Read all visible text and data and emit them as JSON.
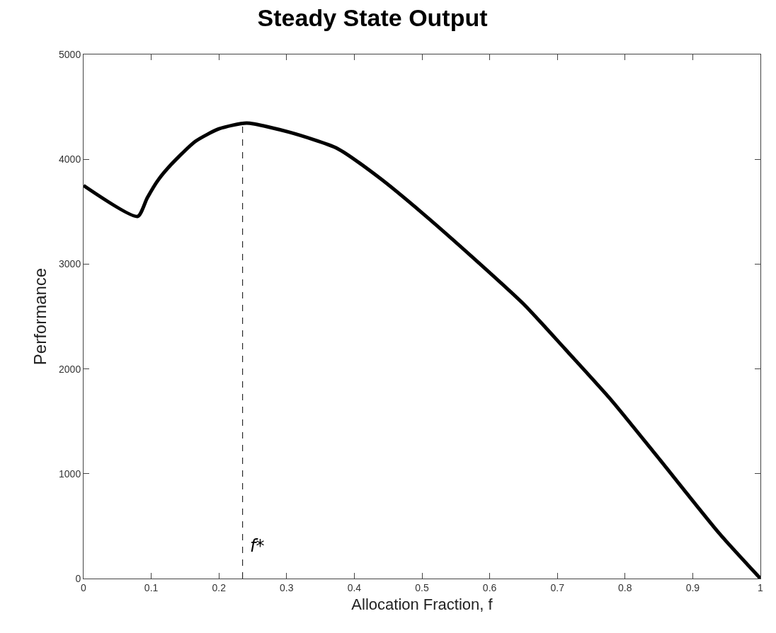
{
  "chart_data": {
    "type": "line",
    "title": "Steady State Output",
    "xlabel": "Allocation Fraction, f",
    "ylabel": "Performance",
    "x": [
      0,
      0.08,
      0.094,
      0.11,
      0.129,
      0.165,
      0.2,
      0.241,
      0.304,
      0.375,
      0.438,
      0.5,
      0.574,
      0.65,
      0.711,
      0.78,
      0.848,
      0.939,
      1
    ],
    "series": [
      {
        "color": "#000000",
        "values": [
          3750,
          3455,
          3630,
          3800,
          3947,
          4170,
          4290,
          4345,
          4258,
          4103,
          3819,
          3490,
          3070,
          2620,
          2193,
          1700,
          1161,
          432,
          0
        ]
      }
    ],
    "xlim": [
      0,
      1
    ],
    "xticks": [
      0,
      0.1,
      0.2,
      0.3,
      0.4,
      0.5,
      0.6,
      0.7,
      0.8,
      0.9,
      1
    ],
    "ylim": [
      0,
      5000
    ],
    "yticks": [
      0,
      1000,
      2000,
      3000,
      4000,
      5000
    ],
    "ref_lines": [
      {
        "axis": "x",
        "value": 0.235,
        "label": "f*",
        "color": "#000000",
        "line_style": "dashed"
      }
    ],
    "line_style": "solid"
  }
}
